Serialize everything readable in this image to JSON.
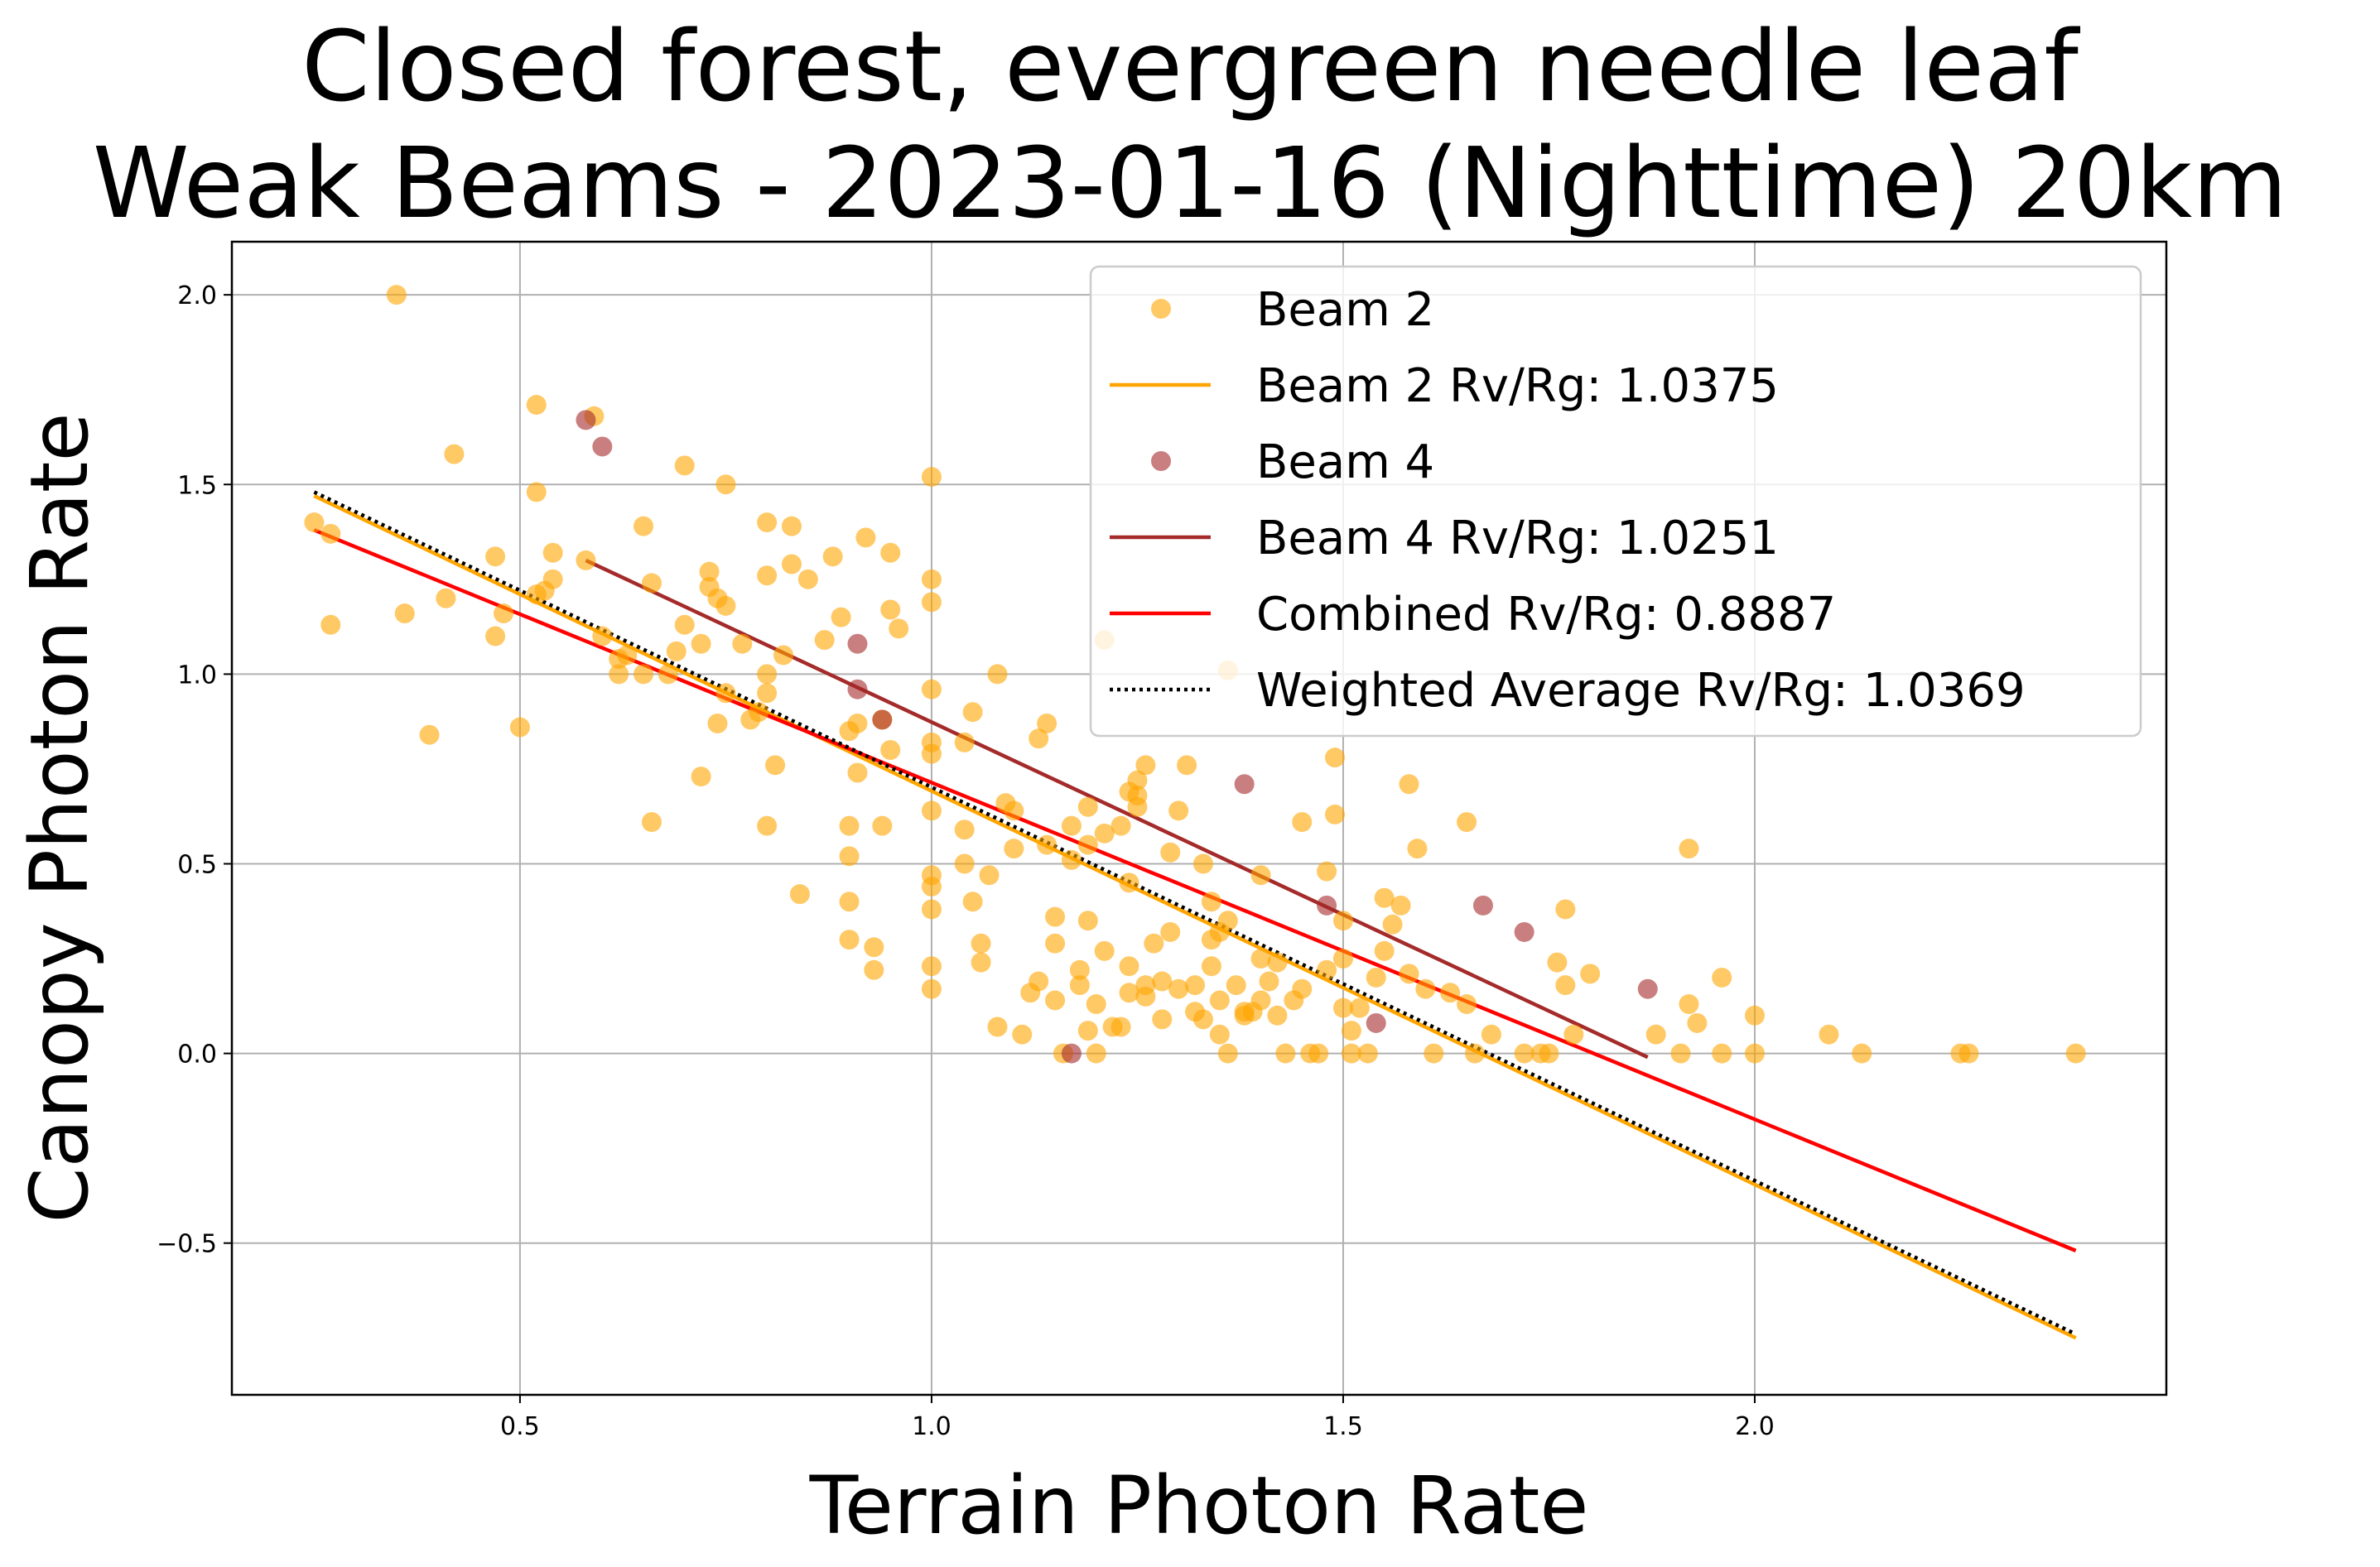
{
  "chart_data": {
    "type": "scatter",
    "title": [
      "Closed forest, evergreen needle leaf",
      "Weak Beams - 2023-01-16 (Nighttime) 20km"
    ],
    "xlabel": "Terrain Photon Rate",
    "ylabel": "Canopy Photon Rate",
    "xlim": [
      0.15,
      2.5
    ],
    "ylim": [
      -0.9,
      2.14
    ],
    "xticks": [
      0.5,
      1.0,
      1.5,
      2.0
    ],
    "xtick_labels": [
      "0.5",
      "1.0",
      "1.5",
      "2.0"
    ],
    "yticks": [
      -0.5,
      0.0,
      0.5,
      1.0,
      1.5,
      2.0
    ],
    "ytick_labels": [
      "−0.5",
      "0.0",
      "0.5",
      "1.0",
      "1.5",
      "2.0"
    ],
    "grid": true,
    "legend_position": "top-right",
    "legend": [
      {
        "label": "Beam 2",
        "kind": "marker",
        "color": "#FFA500"
      },
      {
        "label": "Beam 2 Rv/Rg: 1.0375",
        "kind": "line",
        "color": "#FFA500"
      },
      {
        "label": "Beam 4",
        "kind": "marker",
        "color": "#A52A2A"
      },
      {
        "label": "Beam 4 Rv/Rg: 1.0251",
        "kind": "line",
        "color": "#A52A2A"
      },
      {
        "label": "Combined Rv/Rg: 0.8887",
        "kind": "line",
        "color": "#FF0000"
      },
      {
        "label": "Weighted Average Rv/Rg: 1.0369",
        "kind": "dotted",
        "color": "#000000"
      }
    ],
    "scatter_series": [
      {
        "name": "Beam 2",
        "color": "#FFA500",
        "opacity": 0.6,
        "points": [
          [
            0.25,
            1.4
          ],
          [
            0.27,
            1.37
          ],
          [
            0.27,
            1.13
          ],
          [
            0.35,
            2.0
          ],
          [
            0.36,
            1.16
          ],
          [
            0.39,
            0.84
          ],
          [
            0.41,
            1.2
          ],
          [
            0.42,
            1.58
          ],
          [
            0.47,
            1.31
          ],
          [
            0.47,
            1.1
          ],
          [
            0.48,
            1.16
          ],
          [
            0.5,
            0.86
          ],
          [
            0.52,
            1.71
          ],
          [
            0.52,
            1.48
          ],
          [
            0.52,
            1.21
          ],
          [
            0.53,
            1.22
          ],
          [
            0.54,
            1.25
          ],
          [
            0.54,
            1.32
          ],
          [
            0.58,
            1.3
          ],
          [
            0.59,
            1.68
          ],
          [
            0.6,
            1.1
          ],
          [
            0.62,
            1.04
          ],
          [
            0.62,
            1.0
          ],
          [
            0.63,
            1.05
          ],
          [
            0.65,
            1.39
          ],
          [
            0.65,
            1.0
          ],
          [
            0.66,
            1.24
          ],
          [
            0.66,
            0.61
          ],
          [
            0.68,
            1.0
          ],
          [
            0.69,
            1.06
          ],
          [
            0.7,
            1.55
          ],
          [
            0.7,
            1.13
          ],
          [
            0.72,
            1.08
          ],
          [
            0.72,
            0.73
          ],
          [
            0.73,
            1.27
          ],
          [
            0.73,
            1.23
          ],
          [
            0.74,
            1.2
          ],
          [
            0.74,
            0.87
          ],
          [
            0.75,
            1.5
          ],
          [
            0.75,
            1.18
          ],
          [
            0.75,
            0.95
          ],
          [
            0.77,
            1.08
          ],
          [
            0.78,
            0.88
          ],
          [
            0.79,
            0.9
          ],
          [
            0.8,
            1.4
          ],
          [
            0.8,
            1.26
          ],
          [
            0.8,
            1.0
          ],
          [
            0.8,
            0.95
          ],
          [
            0.8,
            0.6
          ],
          [
            0.81,
            0.76
          ],
          [
            0.82,
            1.05
          ],
          [
            0.83,
            1.39
          ],
          [
            0.83,
            1.29
          ],
          [
            0.84,
            0.42
          ],
          [
            0.85,
            1.25
          ],
          [
            0.87,
            1.09
          ],
          [
            0.88,
            1.31
          ],
          [
            0.89,
            1.15
          ],
          [
            0.9,
            0.85
          ],
          [
            0.9,
            0.6
          ],
          [
            0.9,
            0.52
          ],
          [
            0.9,
            0.4
          ],
          [
            0.9,
            0.3
          ],
          [
            0.91,
            0.87
          ],
          [
            0.91,
            0.74
          ],
          [
            0.92,
            1.36
          ],
          [
            0.93,
            0.28
          ],
          [
            0.93,
            0.22
          ],
          [
            0.94,
            0.88
          ],
          [
            0.94,
            0.6
          ],
          [
            0.95,
            1.32
          ],
          [
            0.95,
            1.17
          ],
          [
            0.95,
            0.8
          ],
          [
            0.96,
            1.12
          ],
          [
            1.0,
            1.52
          ],
          [
            1.0,
            1.25
          ],
          [
            1.0,
            1.19
          ],
          [
            1.0,
            0.96
          ],
          [
            1.0,
            0.82
          ],
          [
            1.0,
            0.79
          ],
          [
            1.0,
            0.64
          ],
          [
            1.0,
            0.47
          ],
          [
            1.0,
            0.44
          ],
          [
            1.0,
            0.38
          ],
          [
            1.0,
            0.23
          ],
          [
            1.0,
            0.17
          ],
          [
            1.04,
            0.59
          ],
          [
            1.04,
            0.5
          ],
          [
            1.04,
            0.82
          ],
          [
            1.05,
            0.9
          ],
          [
            1.05,
            0.4
          ],
          [
            1.06,
            0.29
          ],
          [
            1.06,
            0.24
          ],
          [
            1.07,
            0.47
          ],
          [
            1.08,
            1.0
          ],
          [
            1.08,
            0.07
          ],
          [
            1.09,
            0.66
          ],
          [
            1.1,
            0.54
          ],
          [
            1.1,
            0.64
          ],
          [
            1.11,
            0.05
          ],
          [
            1.12,
            0.16
          ],
          [
            1.13,
            0.83
          ],
          [
            1.13,
            0.19
          ],
          [
            1.14,
            0.87
          ],
          [
            1.14,
            0.55
          ],
          [
            1.15,
            0.36
          ],
          [
            1.15,
            0.29
          ],
          [
            1.15,
            0.14
          ],
          [
            1.16,
            0.0
          ],
          [
            1.17,
            0.6
          ],
          [
            1.17,
            0.51
          ],
          [
            1.18,
            0.22
          ],
          [
            1.18,
            0.18
          ],
          [
            1.19,
            0.65
          ],
          [
            1.19,
            0.55
          ],
          [
            1.19,
            0.35
          ],
          [
            1.19,
            0.06
          ],
          [
            1.2,
            0.13
          ],
          [
            1.2,
            0.0
          ],
          [
            1.21,
            1.09
          ],
          [
            1.21,
            0.58
          ],
          [
            1.21,
            0.27
          ],
          [
            1.22,
            0.07
          ],
          [
            1.23,
            0.07
          ],
          [
            1.23,
            0.6
          ],
          [
            1.24,
            0.69
          ],
          [
            1.24,
            0.45
          ],
          [
            1.24,
            0.23
          ],
          [
            1.24,
            0.16
          ],
          [
            1.25,
            0.72
          ],
          [
            1.25,
            0.68
          ],
          [
            1.25,
            0.65
          ],
          [
            1.26,
            0.76
          ],
          [
            1.26,
            0.18
          ],
          [
            1.26,
            0.15
          ],
          [
            1.27,
            0.29
          ],
          [
            1.28,
            0.09
          ],
          [
            1.28,
            0.19
          ],
          [
            1.29,
            0.53
          ],
          [
            1.29,
            0.32
          ],
          [
            1.3,
            0.64
          ],
          [
            1.3,
            0.17
          ],
          [
            1.31,
            0.76
          ],
          [
            1.32,
            0.11
          ],
          [
            1.32,
            0.18
          ],
          [
            1.33,
            0.5
          ],
          [
            1.33,
            0.09
          ],
          [
            1.34,
            0.4
          ],
          [
            1.34,
            0.3
          ],
          [
            1.34,
            0.23
          ],
          [
            1.35,
            0.32
          ],
          [
            1.35,
            0.14
          ],
          [
            1.35,
            0.05
          ],
          [
            1.36,
            1.01
          ],
          [
            1.36,
            0.35
          ],
          [
            1.36,
            0.0
          ],
          [
            1.37,
            0.18
          ],
          [
            1.38,
            0.11
          ],
          [
            1.38,
            0.1
          ],
          [
            1.39,
            0.11
          ],
          [
            1.4,
            0.47
          ],
          [
            1.4,
            0.25
          ],
          [
            1.4,
            0.14
          ],
          [
            1.41,
            0.19
          ],
          [
            1.42,
            0.24
          ],
          [
            1.42,
            0.1
          ],
          [
            1.43,
            0.0
          ],
          [
            1.44,
            0.14
          ],
          [
            1.45,
            0.61
          ],
          [
            1.45,
            0.17
          ],
          [
            1.46,
            0.0
          ],
          [
            1.47,
            0.0
          ],
          [
            1.48,
            0.22
          ],
          [
            1.48,
            0.48
          ],
          [
            1.49,
            0.78
          ],
          [
            1.49,
            0.63
          ],
          [
            1.5,
            0.35
          ],
          [
            1.5,
            0.25
          ],
          [
            1.5,
            0.12
          ],
          [
            1.51,
            0.0
          ],
          [
            1.51,
            0.06
          ],
          [
            1.52,
            0.12
          ],
          [
            1.53,
            0.0
          ],
          [
            1.54,
            0.2
          ],
          [
            1.55,
            0.41
          ],
          [
            1.55,
            0.27
          ],
          [
            1.56,
            0.34
          ],
          [
            1.57,
            0.39
          ],
          [
            1.58,
            0.71
          ],
          [
            1.58,
            0.21
          ],
          [
            1.59,
            0.54
          ],
          [
            1.6,
            0.17
          ],
          [
            1.61,
            0.0
          ],
          [
            1.63,
            0.16
          ],
          [
            1.65,
            0.61
          ],
          [
            1.65,
            0.13
          ],
          [
            1.66,
            0.0
          ],
          [
            1.68,
            0.05
          ],
          [
            1.72,
            0.0
          ],
          [
            1.74,
            0.0
          ],
          [
            1.75,
            0.0
          ],
          [
            1.76,
            0.24
          ],
          [
            1.77,
            0.18
          ],
          [
            1.77,
            0.38
          ],
          [
            1.78,
            0.05
          ],
          [
            1.8,
            0.21
          ],
          [
            1.88,
            0.05
          ],
          [
            1.91,
            0.0
          ],
          [
            1.92,
            0.13
          ],
          [
            1.92,
            0.54
          ],
          [
            1.93,
            0.08
          ],
          [
            1.96,
            0.0
          ],
          [
            1.96,
            0.2
          ],
          [
            2.0,
            0.0
          ],
          [
            2.0,
            0.1
          ],
          [
            2.09,
            0.05
          ],
          [
            2.13,
            0.0
          ],
          [
            2.25,
            0.0
          ],
          [
            2.26,
            0.0
          ],
          [
            2.39,
            0.0
          ]
        ]
      },
      {
        "name": "Beam 4",
        "color": "#A52A2A",
        "opacity": 0.6,
        "points": [
          [
            0.58,
            1.67
          ],
          [
            0.6,
            1.6
          ],
          [
            0.91,
            1.08
          ],
          [
            0.91,
            0.96
          ],
          [
            0.94,
            0.88
          ],
          [
            1.17,
            0.0
          ],
          [
            1.38,
            0.71
          ],
          [
            1.48,
            0.39
          ],
          [
            1.54,
            0.08
          ],
          [
            1.67,
            0.39
          ],
          [
            1.72,
            0.32
          ],
          [
            1.87,
            0.17
          ]
        ]
      }
    ],
    "line_series": [
      {
        "name": "Beam 2 Rv/Rg: 1.0375",
        "color": "#FFA500",
        "style": "solid",
        "x": [
          0.25,
          2.39
        ],
        "y": [
          1.47,
          -0.75
        ]
      },
      {
        "name": "Beam 4 Rv/Rg: 1.0251",
        "color": "#A52A2A",
        "style": "solid",
        "x": [
          0.58,
          1.87
        ],
        "y": [
          1.3,
          -0.01
        ]
      },
      {
        "name": "Combined Rv/Rg: 0.8887",
        "color": "#FF0000",
        "style": "solid",
        "x": [
          0.25,
          2.39
        ],
        "y": [
          1.38,
          -0.52
        ]
      },
      {
        "name": "Weighted Average Rv/Rg: 1.0369",
        "color": "#000000",
        "style": "dotted",
        "x": [
          0.25,
          2.39
        ],
        "y": [
          1.48,
          -0.74
        ]
      }
    ]
  }
}
